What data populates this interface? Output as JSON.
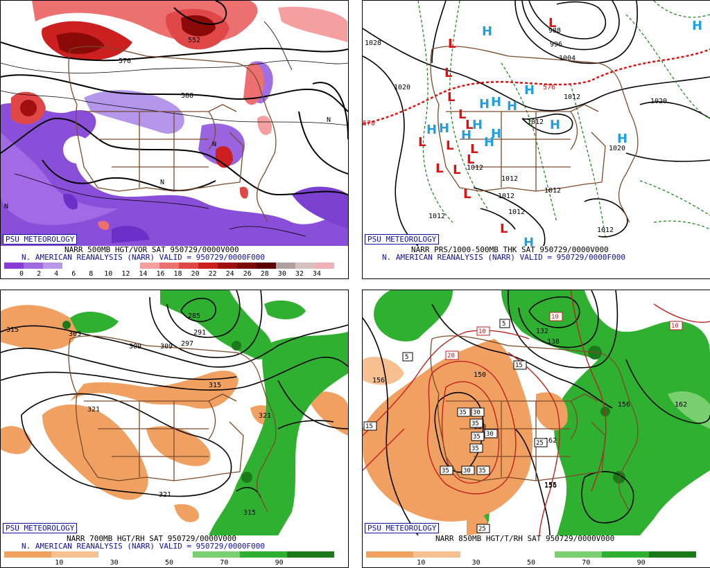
{
  "panels": [
    {
      "id": "tl",
      "logo": "PSU METEOROLOGY",
      "caption1": "NARR 500MB HGT/VOR SAT 950729/0000V000",
      "caption2": "N. AMERICAN REANALYSIS (NARR) VALID = 950729/0000F000",
      "colorbar": {
        "colors": [
          "#8a3cd6",
          "#a06ae0",
          "#b898e8",
          "#ffffff",
          "#ffffff",
          "#ffffff",
          "#ffffff",
          "#f4a0a0",
          "#ec7070",
          "#e04848",
          "#cc2020",
          "#a01010",
          "#7a0a0a",
          "#5a0000",
          "#b0a0a0",
          "#d8c0c0",
          "#f0b0b8"
        ],
        "ticks": [
          "0",
          "2",
          "4",
          "6",
          "8",
          "10",
          "12",
          "14",
          "16",
          "18",
          "20",
          "22",
          "24",
          "26",
          "28",
          "30",
          "32",
          "34"
        ]
      },
      "labels": [
        "576",
        "552",
        "588",
        "N",
        "N",
        "N",
        "N"
      ]
    },
    {
      "id": "tr",
      "logo": "PSU METEOROLOGY",
      "caption1": "NARR PRS/1000-500MB THK SAT 950729/0000V000",
      "caption2": "N. AMERICAN REANALYSIS (NARR) VALID = 950729/0000F000",
      "labels": [
        "1028",
        "1020",
        "570",
        "988",
        "996",
        "1004",
        "576",
        "1012",
        "1012",
        "1020",
        "1020",
        "1012",
        "1012",
        "1012",
        "1012",
        "1012",
        "1012",
        "1012"
      ],
      "highs": "H",
      "lows": "L"
    },
    {
      "id": "bl",
      "logo": "PSU METEOROLOGY",
      "caption1": "NARR 700MB HGT/RH SAT 950729/0000V000",
      "caption2": "N. AMERICAN REANALYSIS (NARR) VALID = 950729/0000F000",
      "colorbar": {
        "colors": [
          "#f0a060",
          "#f6c090",
          "#ffffff",
          "#ffffff",
          "#7ad070",
          "#30b030",
          "#1a7a1a"
        ],
        "ticks": [
          "10",
          "30",
          "50",
          "70",
          "90"
        ]
      },
      "labels": [
        "315",
        "303",
        "285",
        "291",
        "297",
        "309",
        "309",
        "315",
        "321",
        "321",
        "321",
        "315"
      ]
    },
    {
      "id": "br",
      "logo": "PSU METEOROLOGY",
      "caption1": "NARR 850MB HGT/T/RH SAT 950729/0000V000",
      "colorbar": {
        "colors": [
          "#f0a060",
          "#f6c090",
          "#ffffff",
          "#ffffff",
          "#7ad070",
          "#30b030",
          "#1a7a1a"
        ],
        "ticks": [
          "10",
          "30",
          "50",
          "70",
          "90"
        ]
      },
      "labels": [
        "156",
        "150",
        "150",
        "138",
        "132",
        "156",
        "162",
        "156",
        "162",
        "155"
      ],
      "boxes": [
        "5",
        "10",
        "10",
        "10",
        "5",
        "20",
        "15",
        "15",
        "30",
        "35",
        "35",
        "35",
        "30",
        "35",
        "30",
        "35",
        "35",
        "25",
        "25"
      ]
    }
  ]
}
